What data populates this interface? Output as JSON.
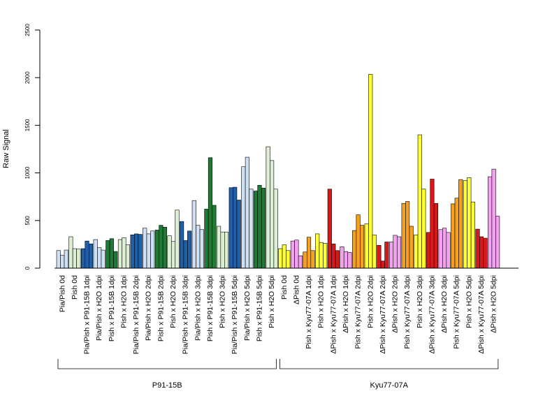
{
  "chart_data": {
    "type": "bar",
    "ylabel": "Raw Signal",
    "ylim": [
      0,
      2500
    ],
    "yticks": [
      0,
      500,
      1000,
      1500,
      2000,
      2500
    ],
    "grid": false,
    "categories": [
      "Pia/Pish 0d",
      "Pish 0d",
      "Pia/Pish x P91-15B 1dpi",
      "Pia/Pish x H2O 1dpi",
      "Pish x P91-15B 1dpi",
      "Pish x H2O 1dpi",
      "Pia/Pish x P91-15B 2dpi",
      "Pia/Pish x H2O 2dpi",
      "Pish x P91-15B 2dpi",
      "Pish x H2O 2dpi",
      "Pia/Pish x P91-15B 3dpi",
      "Pia/Pish x H2O 3dpi",
      "Pish x P91-15B 3dpi",
      "Pish x H2O 3dpi",
      "Pia/Pish x P91-15B 5dpi",
      "Pia/Pish x H2O 5dpi",
      "Pish x P91-15B 5dpi",
      "Pish x H2O 5dpi",
      "Pish 0d",
      "ΔPish 0d",
      "Pish x Kyu77-07A 1dpi",
      "Pish x H2O 1dpi",
      "ΔPish x Kyu77-07A 1dpi",
      "ΔPish x H2O 1dpi",
      "Pish x Kyu77-07A 2dpi",
      "Pish x H2O 2dpi",
      "ΔPish x Kyu77-07A 2dpi",
      "ΔPish x H2O 2dpi",
      "Pish x Kyu77-07A 3dpi",
      "Pish x H2O 3dpi",
      "ΔPish x Kyu77-07A 3dpi",
      "ΔPish x H2O 3dpi",
      "Pish x Kyu77-07A 5dpi",
      "Pish x H2O 5dpi",
      "ΔPish x Kyu77-07A 5dpi",
      "ΔPish x H2O 5dpi"
    ],
    "groups": [
      {
        "label": "P91-15B",
        "first": 0,
        "last": 17
      },
      {
        "label": "Kyu77-07A",
        "first": 18,
        "last": 35
      }
    ],
    "colors": {
      "pia_water": "#cfe0f3",
      "pia_infected": "#1f5fa8",
      "pish_water": "#dcefd3",
      "pish_infected": "#1e7a34",
      "pish_kyu_water": "#ffff33",
      "pish_kyu_infected": "#f5a020",
      "dpish_infected": "#d7191c",
      "dpish_water": "#f2a3ee"
    },
    "bar_colors": [
      "pia_water",
      "pish_water",
      "pia_infected",
      "pia_water",
      "pish_infected",
      "pish_water",
      "pia_infected",
      "pia_water",
      "pish_infected",
      "pish_water",
      "pia_infected",
      "pia_water",
      "pish_infected",
      "pish_water",
      "pia_infected",
      "pia_water",
      "pish_infected",
      "pish_water",
      "pish_kyu_water",
      "dpish_water",
      "pish_kyu_infected",
      "pish_kyu_water",
      "dpish_infected",
      "dpish_water",
      "pish_kyu_infected",
      "pish_kyu_water",
      "dpish_infected",
      "dpish_water",
      "pish_kyu_infected",
      "pish_kyu_water",
      "dpish_infected",
      "dpish_water",
      "pish_kyu_infected",
      "pish_kyu_water",
      "dpish_infected",
      "dpish_water"
    ],
    "replicates": [
      [
        185,
        135,
        190
      ],
      [
        330,
        205,
        200
      ],
      [
        205,
        285,
        255
      ],
      [
        300,
        215,
        190
      ],
      [
        290,
        310,
        175
      ],
      [
        300,
        320,
        245
      ],
      [
        350,
        360,
        355
      ],
      [
        420,
        360,
        390
      ],
      [
        400,
        450,
        430
      ],
      [
        340,
        280,
        610
      ],
      [
        490,
        290,
        390
      ],
      [
        710,
        450,
        405
      ],
      [
        620,
        1160,
        660
      ],
      [
        440,
        380,
        380
      ],
      [
        845,
        850,
        715
      ],
      [
        1065,
        1165,
        830
      ],
      [
        810,
        870,
        840
      ],
      [
        1275,
        1130,
        830
      ],
      [
        205,
        245,
        185
      ],
      [
        285,
        295,
        130
      ],
      [
        170,
        325,
        185
      ],
      [
        360,
        270,
        260
      ],
      [
        830,
        255,
        185
      ],
      [
        225,
        175,
        165
      ],
      [
        395,
        560,
        450
      ],
      [
        465,
        2035,
        350
      ],
      [
        240,
        75,
        275
      ],
      [
        275,
        345,
        330
      ],
      [
        680,
        700,
        440
      ],
      [
        350,
        1400,
        830
      ],
      [
        375,
        935,
        680
      ],
      [
        405,
        420,
        375
      ],
      [
        675,
        735,
        930
      ],
      [
        920,
        950,
        695
      ],
      [
        410,
        330,
        315
      ],
      [
        960,
        1040,
        545
      ]
    ]
  }
}
